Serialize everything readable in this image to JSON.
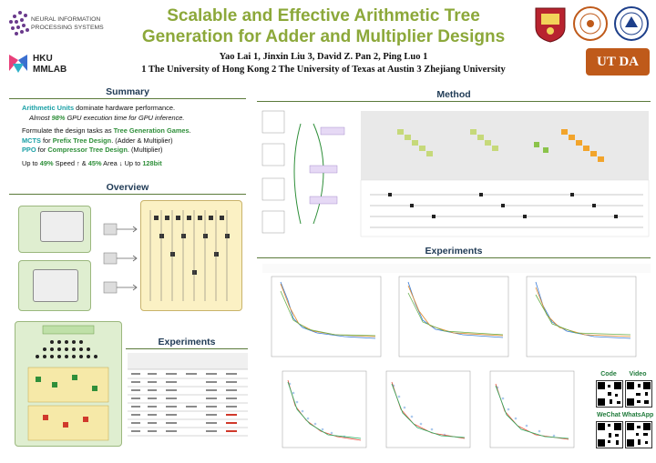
{
  "header": {
    "conference_logo_text": [
      "NEURAL INFORMATION",
      "PROCESSING SYSTEMS"
    ],
    "lab_logo_text": [
      "HKU",
      "MMLAB"
    ],
    "title_line1": "Scalable and Effective Arithmetic Tree",
    "title_line2": "Generation for Adder and Multiplier Designs",
    "authors": "Yao Lai 1, Jinxin Liu 3,  David Z. Pan 2, Ping Luo 1",
    "affiliations": "1 The University of Hong Kong  2 The University of Texas at Austin 3 Zhejiang University",
    "ut_logo_text": "UT DA"
  },
  "sections": {
    "summary": "Summary",
    "overview": "Overview",
    "method": "Method",
    "experiments_left": "Experiments",
    "experiments_right": "Experiments"
  },
  "summary": {
    "l1_a": "Arithmetic Units",
    "l1_b": " dominate hardware performance.",
    "l2_a": "Almost ",
    "l2_b": "98%",
    "l2_c": " GPU execution time for GPU inference.",
    "l3_a": "Formulate the design tasks as ",
    "l3_b": "Tree Generation Games",
    "l3_c": ".",
    "l4_a": "MCTS",
    "l4_b": " for ",
    "l4_c": "Prefix Tree Design",
    "l4_d": ". (Adder & Multiplier)",
    "l5_a": "PPO",
    "l5_b": " for ",
    "l5_c": "Compressor Tree Design",
    "l5_d": ". (Multiplier)",
    "l6_a": "Up to ",
    "l6_b": "49%",
    "l6_c": " Speed ↑ & ",
    "l6_d": "45%",
    "l6_e": " Area ↓  Up to ",
    "l6_f": "128bit"
  },
  "qr": {
    "code": "Code",
    "video": "Video",
    "wechat": "WeChat",
    "whatsapp": "WhatsApp"
  },
  "colors": {
    "title": "#8ca83a",
    "section_heading": "#1f3a55",
    "accent_green": "#2f8f3a",
    "accent_teal": "#1aa0a6"
  }
}
